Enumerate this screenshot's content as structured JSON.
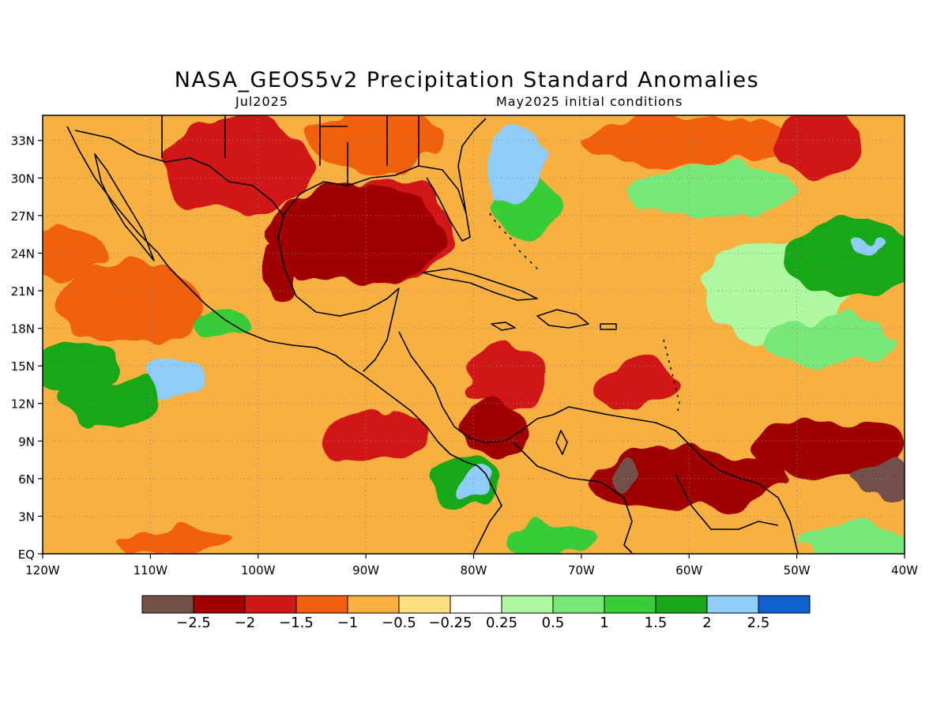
{
  "map": {
    "title": "NASA_GEOS5v2 Precipitation Standard Anomalies",
    "valid_month": "Jul2025",
    "initial_conditions": "May2025 initial conditions",
    "region": {
      "lon_range": [
        -120,
        -40
      ],
      "lat_range": [
        0,
        35
      ]
    },
    "lon_ticks": [
      {
        "lon": -120,
        "label": "120W"
      },
      {
        "lon": -110,
        "label": "110W"
      },
      {
        "lon": -100,
        "label": "100W"
      },
      {
        "lon": -90,
        "label": "90W"
      },
      {
        "lon": -80,
        "label": "80W"
      },
      {
        "lon": -70,
        "label": "70W"
      },
      {
        "lon": -60,
        "label": "60W"
      },
      {
        "lon": -50,
        "label": "50W"
      },
      {
        "lon": -40,
        "label": "40W"
      }
    ],
    "lat_ticks": [
      {
        "lat": 0,
        "label": "EQ"
      },
      {
        "lat": 3,
        "label": "3N"
      },
      {
        "lat": 6,
        "label": "6N"
      },
      {
        "lat": 9,
        "label": "9N"
      },
      {
        "lat": 12,
        "label": "12N"
      },
      {
        "lat": 15,
        "label": "15N"
      },
      {
        "lat": 18,
        "label": "18N"
      },
      {
        "lat": 21,
        "label": "21N"
      },
      {
        "lat": 24,
        "label": "24N"
      },
      {
        "lat": 27,
        "label": "27N"
      },
      {
        "lat": 30,
        "label": "30N"
      },
      {
        "lat": 33,
        "label": "33N"
      }
    ],
    "gridlines": "dotted",
    "anomaly_fields": [
      {
        "lon": -91,
        "lat": 25.5,
        "value": -2.3,
        "rx": 8,
        "ry": 4
      },
      {
        "lon": -88,
        "lat": 26,
        "value": -1.9,
        "rx": 6,
        "ry": 4
      },
      {
        "lon": -98,
        "lat": 22.5,
        "value": -2.2,
        "rx": 2,
        "ry": 2
      },
      {
        "lon": -102,
        "lat": 31,
        "value": -1.6,
        "rx": 7,
        "ry": 4
      },
      {
        "lon": -89,
        "lat": 33,
        "value": -1.5,
        "rx": 6,
        "ry": 2.5
      },
      {
        "lon": -112,
        "lat": 20,
        "value": -1.3,
        "rx": 7,
        "ry": 3
      },
      {
        "lon": -118,
        "lat": 24,
        "value": -1.4,
        "rx": 4,
        "ry": 2
      },
      {
        "lon": -77,
        "lat": 14,
        "value": -1.6,
        "rx": 4,
        "ry": 2.5
      },
      {
        "lon": -78,
        "lat": 10,
        "value": -2.2,
        "rx": 3,
        "ry": 2
      },
      {
        "lon": -65,
        "lat": 13.5,
        "value": -1.8,
        "rx": 4,
        "ry": 2
      },
      {
        "lon": -60,
        "lat": 6,
        "value": -2.1,
        "rx": 9,
        "ry": 2.5
      },
      {
        "lon": -66,
        "lat": 6.5,
        "value": -2.6,
        "rx": 1.5,
        "ry": 1
      },
      {
        "lon": -47,
        "lat": 8.5,
        "value": -2.3,
        "rx": 7,
        "ry": 2.5
      },
      {
        "lon": -42,
        "lat": 6,
        "value": -2.6,
        "rx": 2.5,
        "ry": 1.5
      },
      {
        "lon": -89,
        "lat": 9.5,
        "value": -1.7,
        "rx": 5,
        "ry": 2
      },
      {
        "lon": -60,
        "lat": 33,
        "value": -1.2,
        "rx": 10,
        "ry": 2
      },
      {
        "lon": -48,
        "lat": 33,
        "value": -1.6,
        "rx": 4,
        "ry": 2.5
      },
      {
        "lon": -78,
        "lat": 20,
        "value": -0.8,
        "rx": 6,
        "ry": 2
      },
      {
        "lon": -112,
        "lat": 5,
        "value": -0.7,
        "rx": 10,
        "ry": 3
      },
      {
        "lon": -108,
        "lat": 1,
        "value": -1.2,
        "rx": 5,
        "ry": 1
      },
      {
        "lon": -117,
        "lat": 15,
        "value": 1.8,
        "rx": 4,
        "ry": 2
      },
      {
        "lon": -108,
        "lat": 14,
        "value": 2.3,
        "rx": 3,
        "ry": 1.5
      },
      {
        "lon": -114,
        "lat": 12,
        "value": 1.5,
        "rx": 5,
        "ry": 2
      },
      {
        "lon": -103,
        "lat": 18.5,
        "value": 1.1,
        "rx": 3,
        "ry": 1
      },
      {
        "lon": -81,
        "lat": 6,
        "value": 1.8,
        "rx": 3,
        "ry": 2
      },
      {
        "lon": -80,
        "lat": 6,
        "value": 2.4,
        "rx": 1.5,
        "ry": 1
      },
      {
        "lon": -76,
        "lat": 31,
        "value": 2.4,
        "rx": 3,
        "ry": 3
      },
      {
        "lon": -75,
        "lat": 28,
        "value": 1.2,
        "rx": 3,
        "ry": 3
      },
      {
        "lon": -45,
        "lat": 23.5,
        "value": 1.5,
        "rx": 6,
        "ry": 3
      },
      {
        "lon": -43.5,
        "lat": 24.5,
        "value": 2.4,
        "rx": 1.5,
        "ry": 0.6
      },
      {
        "lon": -52,
        "lat": 21,
        "value": 0.3,
        "rx": 7,
        "ry": 4
      },
      {
        "lon": -47,
        "lat": 17,
        "value": 0.6,
        "rx": 6,
        "ry": 2
      },
      {
        "lon": -58,
        "lat": 29,
        "value": 0.7,
        "rx": 8,
        "ry": 2
      },
      {
        "lon": -44,
        "lat": 1,
        "value": 0.5,
        "rx": 6,
        "ry": 1.5
      },
      {
        "lon": -73,
        "lat": 1,
        "value": 1.2,
        "rx": 4,
        "ry": 1.5
      }
    ],
    "colorbar": {
      "colors": [
        "#735048",
        "#a00000",
        "#d01818",
        "#f06010",
        "#f8b040",
        "#fce080",
        "#ffffff",
        "#b0f8a0",
        "#78e878",
        "#38cc38",
        "#18a818",
        "#90ccf8",
        "#1060d0"
      ],
      "labels": [
        "−2.5",
        "−2",
        "−1.5",
        "−1",
        "−0.5",
        "−0.25",
        "0.25",
        "0.5",
        "1",
        "1.5",
        "2",
        "2.5"
      ],
      "thresholds": [
        -2.5,
        -2,
        -1.5,
        -1,
        -0.5,
        -0.25,
        0.25,
        0.5,
        1,
        1.5,
        2,
        2.5
      ]
    },
    "background_anomaly": -0.6
  }
}
